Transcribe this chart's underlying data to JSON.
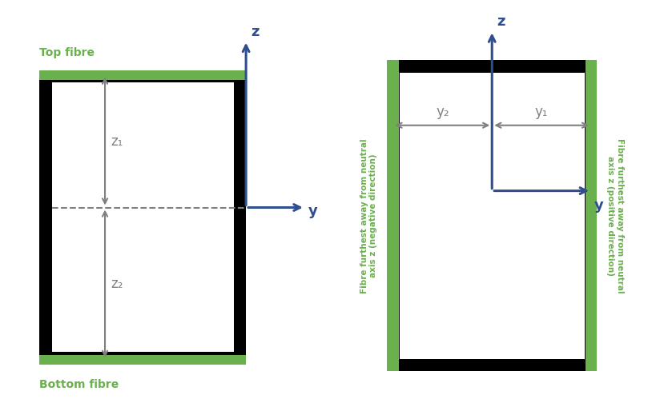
{
  "bg_color": "#ffffff",
  "green_color": "#6ab04c",
  "black_color": "#000000",
  "gray_color": "#808080",
  "blue_color": "#2e4e8e",
  "top_fibre_label": "Top fibre",
  "bottom_fibre_label": "Bottom fibre",
  "z1_label": "z₁",
  "z2_label": "z₂",
  "y1_label": "y₁",
  "y2_label": "y₂",
  "y_label": "y",
  "z_label": "z",
  "left_rotated_label": "Fibre furthest away from neutral\naxis z (negative direction)",
  "right_rotated_label": "Fibre furthest away from neutral\naxis z (positive direction)"
}
